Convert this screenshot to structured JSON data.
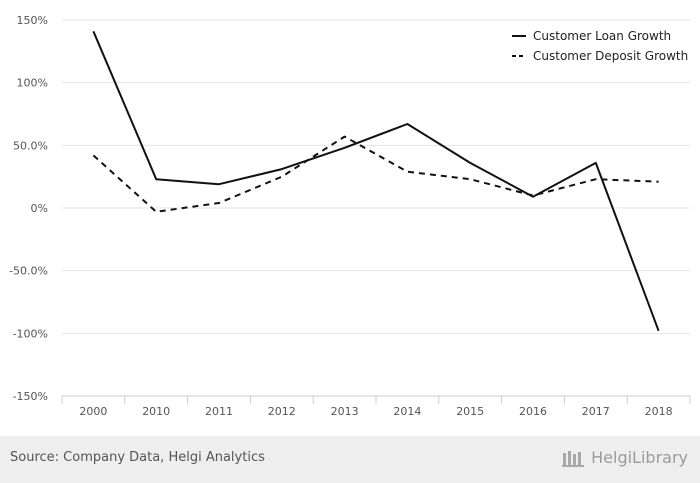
{
  "chart_data": {
    "type": "line",
    "categories": [
      "2000",
      "2010",
      "2011",
      "2012",
      "2013",
      "2014",
      "2015",
      "2016",
      "2017",
      "2018"
    ],
    "series": [
      {
        "name": "Customer Loan Growth",
        "style": "solid",
        "color": "#111111",
        "values": [
          141,
          23,
          19,
          31,
          48,
          67,
          36,
          9,
          36,
          -98
        ]
      },
      {
        "name": "Customer Deposit Growth",
        "style": "dashed",
        "color": "#111111",
        "values": [
          42,
          -3,
          4,
          25,
          57,
          29,
          23,
          10,
          23,
          21
        ]
      }
    ],
    "ylim": [
      -150,
      150
    ],
    "yticks": [
      {
        "value": 150,
        "label": "150%"
      },
      {
        "value": 100,
        "label": "100%"
      },
      {
        "value": 50,
        "label": "50.0%"
      },
      {
        "value": 0,
        "label": "0%"
      },
      {
        "value": -50,
        "label": "-50.0%"
      },
      {
        "value": -100,
        "label": "-100%"
      },
      {
        "value": -150,
        "label": "-150%"
      }
    ],
    "grid": true,
    "legend": "top-right"
  },
  "footer": {
    "source": "Source: Company Data, Helgi Analytics",
    "brand": "HelgiLibrary"
  },
  "colors": {
    "grid": "#e6e6e6",
    "axis": "#cccccc",
    "line": "#111111",
    "footer_bg": "#eeeeee"
  }
}
